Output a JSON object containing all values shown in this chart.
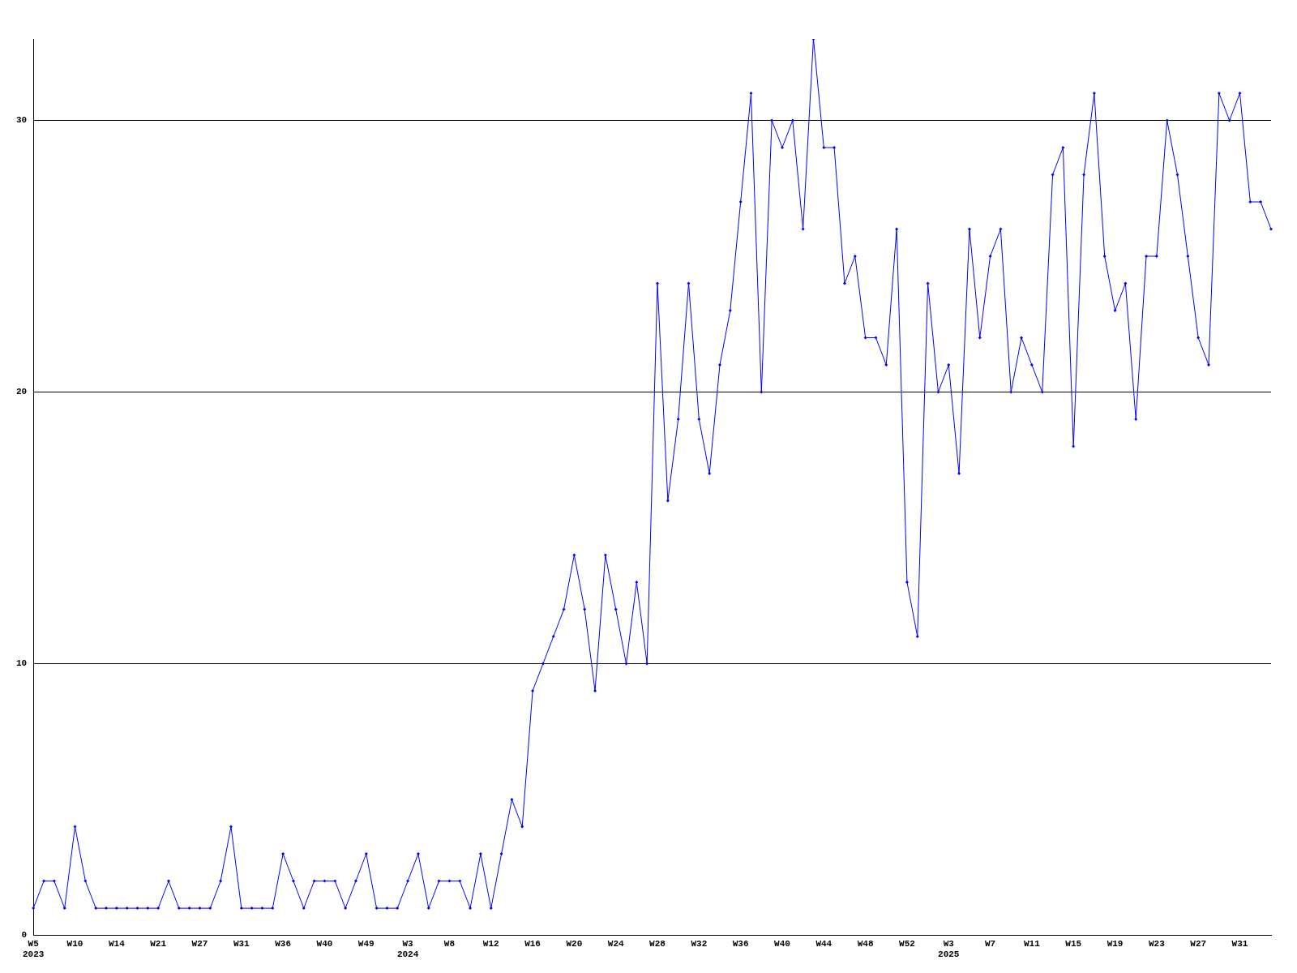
{
  "chart_data": {
    "type": "line",
    "categories": [
      "W5\n2023",
      null,
      null,
      null,
      "W10",
      null,
      null,
      null,
      "W14",
      null,
      null,
      null,
      "W21",
      null,
      null,
      null,
      "W27",
      null,
      null,
      null,
      "W31",
      null,
      null,
      null,
      "W36",
      null,
      null,
      null,
      "W40",
      null,
      null,
      null,
      "W49",
      null,
      null,
      null,
      "W3\n2024",
      null,
      null,
      null,
      "W8",
      null,
      null,
      null,
      "W12",
      null,
      null,
      null,
      "W16",
      null,
      null,
      null,
      "W20",
      null,
      null,
      null,
      "W24",
      null,
      null,
      null,
      "W28",
      null,
      null,
      null,
      "W32",
      null,
      null,
      null,
      "W36",
      null,
      null,
      null,
      "W40",
      null,
      null,
      null,
      "W44",
      null,
      null,
      null,
      "W48",
      null,
      null,
      null,
      "W52",
      null,
      null,
      null,
      "W3\n2025",
      null,
      null,
      null,
      "W7",
      null,
      null,
      null,
      "W11",
      null,
      null,
      null,
      "W15",
      null,
      null,
      null,
      "W19",
      null,
      null,
      null,
      "W23",
      null,
      null,
      null,
      "W27",
      null,
      null,
      null,
      "W31",
      null,
      null,
      null
    ],
    "series": [
      {
        "color": "#0000ff",
        "values": [
          1,
          2,
          2,
          1,
          4,
          2,
          1,
          1,
          1,
          1,
          1,
          1,
          1,
          2,
          1,
          1,
          1,
          1,
          2,
          4,
          1,
          1,
          1,
          1,
          3,
          2,
          1,
          2,
          2,
          2,
          1,
          2,
          3,
          1,
          1,
          1,
          2,
          3,
          1,
          2,
          2,
          2,
          1,
          3,
          1,
          3,
          5,
          4,
          9,
          10,
          11,
          12,
          14,
          12,
          9,
          14,
          12,
          10,
          13,
          10,
          24,
          16,
          19,
          24,
          19,
          17,
          21,
          23,
          27,
          31,
          20,
          30,
          29,
          30,
          26,
          33,
          29,
          29,
          24,
          25,
          22,
          22,
          21,
          26,
          13,
          11,
          24,
          20,
          21,
          17,
          26,
          22,
          25,
          26,
          20,
          22,
          21,
          20,
          28,
          29,
          18,
          28,
          31,
          25,
          23,
          24,
          19,
          25,
          25,
          30,
          28,
          25,
          22,
          21,
          31,
          30,
          31,
          27,
          27,
          26
        ]
      }
    ],
    "ylim": [
      0,
      33
    ],
    "yticks": [
      0,
      10,
      20,
      30
    ],
    "grid": "y",
    "legend": false,
    "marker": "diamond",
    "line_style": "solid"
  }
}
